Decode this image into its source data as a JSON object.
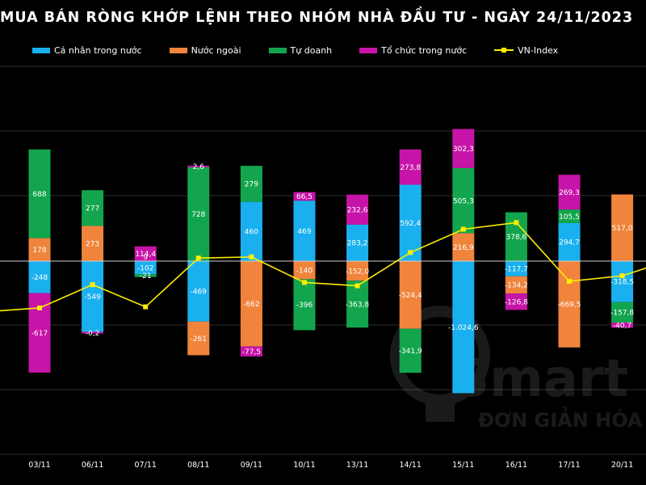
{
  "chart_data": {
    "type": "bar",
    "stacked": true,
    "title": "MUA BÁN RÒNG KHỚP LỆNH THEO NHÓM NHÀ ĐẦU TƯ - NGÀY 24/11/2023",
    "categories": [
      "03/11",
      "06/11",
      "07/11",
      "08/11",
      "09/11",
      "10/11",
      "13/11",
      "14/11",
      "15/11",
      "16/11",
      "17/11",
      "20/11"
    ],
    "series": [
      {
        "name": "Cá nhân trong nước",
        "color": "#1ab0ef",
        "values": [
          -248,
          -549,
          -102,
          -469,
          460,
          469,
          283.2,
          592.4,
          -1024.6,
          -117.7,
          294.7,
          -318.5
        ],
        "labels": [
          "-248",
          "-549",
          "-102",
          "-469",
          "460",
          "469",
          "283,2",
          "592,4",
          "-1.024,6",
          "-117,7",
          "294,7",
          "-318,5"
        ]
      },
      {
        "name": "Nước ngoài",
        "color": "#f0843c",
        "values": [
          178,
          273,
          0,
          -261,
          -662,
          -140,
          -152.0,
          -524.4,
          216.9,
          -134.2,
          -669.5,
          517.0
        ],
        "labels": [
          "178",
          "273",
          "",
          "-261",
          "-662",
          "-140",
          "-152,0",
          "-524,4",
          "216,9",
          "-134,2",
          "-669,5",
          "517,0"
        ]
      },
      {
        "name": "Tự doanh",
        "color": "#13a54d",
        "values": [
          688,
          277,
          -21,
          728,
          279,
          -396,
          -363.8,
          -341.9,
          505.3,
          378.6,
          105.5,
          -157.8
        ],
        "labels": [
          "688",
          "277",
          "-21",
          "728",
          "279",
          "-396",
          "-363,8",
          "-341,9",
          "505,3",
          "378,6",
          "105,5",
          "-157,8"
        ]
      },
      {
        "name": "Tổ chức trong nước",
        "color": "#c714a8",
        "values": [
          -617,
          -0.2,
          114.4,
          2.6,
          -77.5,
          66.5,
          232.6,
          273.8,
          302.3,
          -126.8,
          269.3,
          -40.7
        ],
        "labels": [
          "-617",
          "-0,2",
          "114,4",
          "2,6",
          "-77,5",
          "66,5",
          "232,6",
          "273,8",
          "302,3",
          "-126,8",
          "269,3",
          "-40,7"
        ]
      }
    ],
    "extra_labels": [
      {
        "category": "07/11",
        "text": "9"
      }
    ],
    "line_series": {
      "name": "VN-Index",
      "color": "#ffee00",
      "values": [
        1082,
        1103,
        1083,
        1127,
        1128,
        1105,
        1102,
        1132,
        1153,
        1159,
        1106,
        1111
      ]
    },
    "ylim": [
      -1050,
      1530
    ],
    "line_ylim": [
      950,
      1300
    ],
    "grid": true,
    "legend_position": "top"
  },
  "watermark": {
    "brand": "Smart",
    "tagline": "ĐƠN GIẢN HÓA"
  }
}
